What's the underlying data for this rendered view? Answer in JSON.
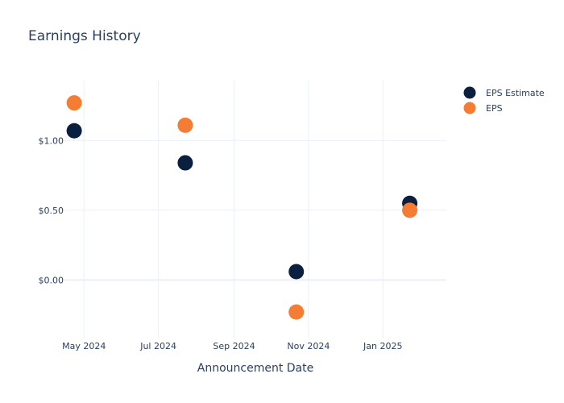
{
  "chart_data": {
    "type": "scatter",
    "title": "Earnings History",
    "xlabel": "Announcement Date",
    "ylabel": "",
    "x_ticks": [
      {
        "date": "2024-05-01",
        "label": "May 2024"
      },
      {
        "date": "2024-07-01",
        "label": "Jul 2024"
      },
      {
        "date": "2024-09-01",
        "label": "Sep 2024"
      },
      {
        "date": "2024-11-01",
        "label": "Nov 2024"
      },
      {
        "date": "2025-01-01",
        "label": "Jan 2025"
      }
    ],
    "y_ticks": [
      {
        "value": 0,
        "label": "$0.00"
      },
      {
        "value": 0.5,
        "label": "$0.50"
      },
      {
        "value": 1.0,
        "label": "$1.00"
      }
    ],
    "xlim": [
      "2024-04-15",
      "2025-02-22"
    ],
    "ylim": [
      -0.42,
      1.43
    ],
    "grid": true,
    "legend_position": "top-right",
    "series": [
      {
        "name": "EPS Estimate",
        "color": "#0b1f3f",
        "points": [
          {
            "x": "2024-04-23",
            "y": 1.07
          },
          {
            "x": "2024-07-23",
            "y": 0.84
          },
          {
            "x": "2024-10-22",
            "y": 0.06
          },
          {
            "x": "2025-01-23",
            "y": 0.55
          }
        ]
      },
      {
        "name": "EPS",
        "color": "#f47c33",
        "points": [
          {
            "x": "2024-04-23",
            "y": 1.27
          },
          {
            "x": "2024-07-23",
            "y": 1.11
          },
          {
            "x": "2024-10-22",
            "y": -0.23
          },
          {
            "x": "2025-01-23",
            "y": 0.5
          }
        ]
      }
    ]
  }
}
